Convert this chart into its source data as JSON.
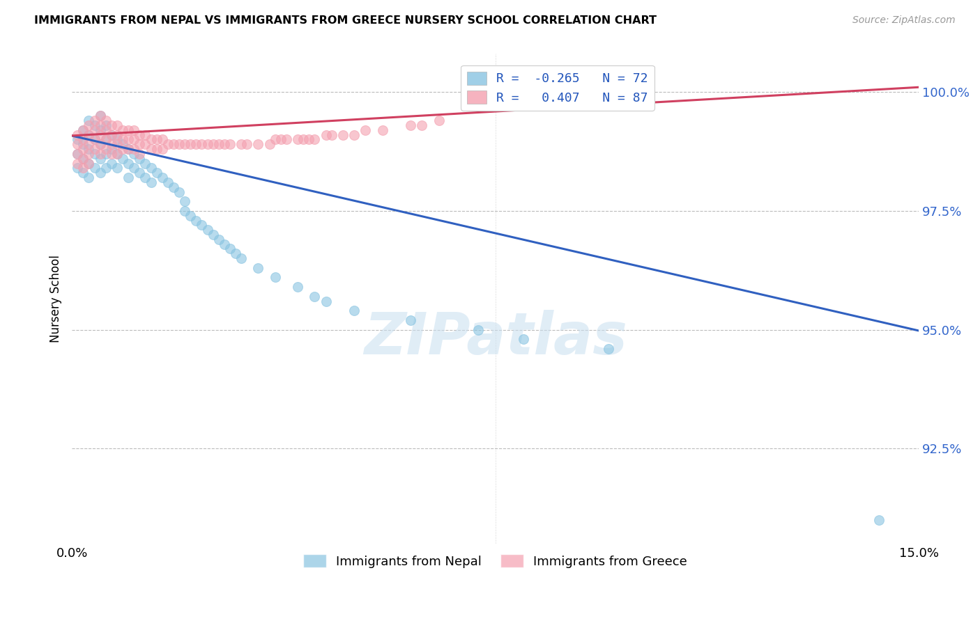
{
  "title": "IMMIGRANTS FROM NEPAL VS IMMIGRANTS FROM GREECE NURSERY SCHOOL CORRELATION CHART",
  "source": "Source: ZipAtlas.com",
  "ylabel": "Nursery School",
  "ytick_labels": [
    "100.0%",
    "97.5%",
    "95.0%",
    "92.5%"
  ],
  "ytick_values": [
    1.0,
    0.975,
    0.95,
    0.925
  ],
  "xlim": [
    0.0,
    0.15
  ],
  "ylim": [
    0.905,
    1.008
  ],
  "nepal_color": "#89c4e1",
  "greece_color": "#f4a0b0",
  "nepal_line_color": "#3060c0",
  "greece_line_color": "#d04060",
  "watermark": "ZIPatlas",
  "nepal_line": [
    0.0,
    0.9908,
    0.15,
    0.9498
  ],
  "greece_line": [
    0.0,
    0.9908,
    0.15,
    1.001
  ],
  "nepal_scatter_x": [
    0.001,
    0.001,
    0.001,
    0.002,
    0.002,
    0.002,
    0.002,
    0.003,
    0.003,
    0.003,
    0.003,
    0.003,
    0.004,
    0.004,
    0.004,
    0.004,
    0.005,
    0.005,
    0.005,
    0.005,
    0.005,
    0.006,
    0.006,
    0.006,
    0.006,
    0.007,
    0.007,
    0.007,
    0.008,
    0.008,
    0.008,
    0.009,
    0.009,
    0.01,
    0.01,
    0.01,
    0.011,
    0.011,
    0.012,
    0.012,
    0.013,
    0.013,
    0.014,
    0.014,
    0.015,
    0.016,
    0.017,
    0.018,
    0.019,
    0.02,
    0.02,
    0.021,
    0.022,
    0.023,
    0.024,
    0.025,
    0.026,
    0.027,
    0.028,
    0.029,
    0.03,
    0.033,
    0.036,
    0.04,
    0.043,
    0.045,
    0.05,
    0.06,
    0.072,
    0.08,
    0.095,
    0.143
  ],
  "nepal_scatter_y": [
    0.99,
    0.987,
    0.984,
    0.992,
    0.989,
    0.986,
    0.983,
    0.994,
    0.991,
    0.988,
    0.985,
    0.982,
    0.993,
    0.99,
    0.987,
    0.984,
    0.995,
    0.992,
    0.989,
    0.986,
    0.983,
    0.993,
    0.99,
    0.987,
    0.984,
    0.991,
    0.988,
    0.985,
    0.99,
    0.987,
    0.984,
    0.989,
    0.986,
    0.988,
    0.985,
    0.982,
    0.987,
    0.984,
    0.986,
    0.983,
    0.985,
    0.982,
    0.984,
    0.981,
    0.983,
    0.982,
    0.981,
    0.98,
    0.979,
    0.977,
    0.975,
    0.974,
    0.973,
    0.972,
    0.971,
    0.97,
    0.969,
    0.968,
    0.967,
    0.966,
    0.965,
    0.963,
    0.961,
    0.959,
    0.957,
    0.956,
    0.954,
    0.952,
    0.95,
    0.948,
    0.946,
    0.91
  ],
  "greece_scatter_x": [
    0.001,
    0.001,
    0.001,
    0.001,
    0.002,
    0.002,
    0.002,
    0.002,
    0.002,
    0.003,
    0.003,
    0.003,
    0.003,
    0.003,
    0.004,
    0.004,
    0.004,
    0.004,
    0.005,
    0.005,
    0.005,
    0.005,
    0.005,
    0.006,
    0.006,
    0.006,
    0.006,
    0.007,
    0.007,
    0.007,
    0.007,
    0.008,
    0.008,
    0.008,
    0.008,
    0.009,
    0.009,
    0.009,
    0.01,
    0.01,
    0.01,
    0.011,
    0.011,
    0.011,
    0.012,
    0.012,
    0.012,
    0.013,
    0.013,
    0.014,
    0.014,
    0.015,
    0.015,
    0.016,
    0.016,
    0.017,
    0.018,
    0.019,
    0.02,
    0.021,
    0.022,
    0.023,
    0.024,
    0.025,
    0.026,
    0.027,
    0.028,
    0.03,
    0.031,
    0.033,
    0.035,
    0.036,
    0.037,
    0.038,
    0.04,
    0.041,
    0.042,
    0.043,
    0.045,
    0.046,
    0.048,
    0.05,
    0.052,
    0.055,
    0.06,
    0.062,
    0.065
  ],
  "greece_scatter_y": [
    0.991,
    0.989,
    0.987,
    0.985,
    0.992,
    0.99,
    0.988,
    0.986,
    0.984,
    0.993,
    0.991,
    0.989,
    0.987,
    0.985,
    0.994,
    0.992,
    0.99,
    0.988,
    0.995,
    0.993,
    0.991,
    0.989,
    0.987,
    0.994,
    0.992,
    0.99,
    0.988,
    0.993,
    0.991,
    0.989,
    0.987,
    0.993,
    0.991,
    0.989,
    0.987,
    0.992,
    0.99,
    0.988,
    0.992,
    0.99,
    0.988,
    0.992,
    0.99,
    0.988,
    0.991,
    0.989,
    0.987,
    0.991,
    0.989,
    0.99,
    0.988,
    0.99,
    0.988,
    0.99,
    0.988,
    0.989,
    0.989,
    0.989,
    0.989,
    0.989,
    0.989,
    0.989,
    0.989,
    0.989,
    0.989,
    0.989,
    0.989,
    0.989,
    0.989,
    0.989,
    0.989,
    0.99,
    0.99,
    0.99,
    0.99,
    0.99,
    0.99,
    0.99,
    0.991,
    0.991,
    0.991,
    0.991,
    0.992,
    0.992,
    0.993,
    0.993,
    0.994
  ]
}
